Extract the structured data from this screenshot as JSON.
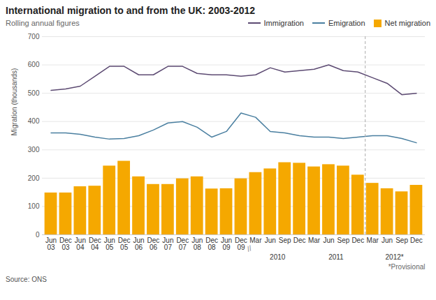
{
  "chart_data": {
    "type": "bar",
    "title": "International migration to and from the UK: 2003-2012",
    "subtitle": "Rolling annual figures",
    "y_label": "Migration (thousands)",
    "source": "Source: ONS",
    "categories": [
      "Jun\n03",
      "Dec\n03",
      "Jun\n04",
      "Dec\n04",
      "Jun\n05",
      "Dec\n05",
      "Jun\n06",
      "Dec\n06",
      "Jun\n07",
      "Dec\n07",
      "Jun\n08",
      "Dec\n08",
      "Jun\n09",
      "Dec\n09",
      "Mar",
      "Jun",
      "Sep",
      "Dec",
      "Mar",
      "Jun",
      "Sep",
      "Dec",
      "Mar",
      "Jun",
      "Sep",
      "Dec"
    ],
    "series": [
      {
        "name": "Immigration",
        "type": "line",
        "color": "#5c4a72",
        "values": [
          510,
          515,
          525,
          560,
          595,
          595,
          565,
          565,
          595,
          595,
          570,
          565,
          565,
          560,
          565,
          590,
          575,
          580,
          585,
          600,
          580,
          575,
          555,
          535,
          495,
          500
        ]
      },
      {
        "name": "Emigration",
        "type": "line",
        "color": "#4a7fa0",
        "values": [
          360,
          360,
          355,
          345,
          338,
          340,
          350,
          370,
          395,
          400,
          380,
          345,
          365,
          430,
          415,
          365,
          360,
          350,
          345,
          345,
          340,
          345,
          350,
          350,
          340,
          325
        ]
      },
      {
        "name": "Net migration",
        "type": "bar",
        "color": "#f5a800",
        "values": [
          148,
          148,
          170,
          172,
          243,
          260,
          205,
          178,
          178,
          198,
          205,
          162,
          163,
          198,
          220,
          233,
          255,
          253,
          240,
          248,
          243,
          211,
          182,
          163,
          152,
          175
        ]
      }
    ],
    "year_groups": [
      {
        "label": "2010",
        "first": 14,
        "last": 17
      },
      {
        "label": "2011",
        "first": 18,
        "last": 21
      },
      {
        "label": "2012*",
        "first": 22,
        "last": 25
      }
    ],
    "provisional_divider": {
      "before_category": 22,
      "color": "#aaaaaa",
      "line_style": "dashed"
    },
    "break_mark": {
      "text": "//",
      "after_category": 13
    },
    "footnote": "*Provisional",
    "ylim": [
      0,
      700
    ],
    "yticks": [
      0,
      100,
      200,
      300,
      400,
      500,
      600,
      700
    ],
    "grid": true,
    "legend": "upper right"
  }
}
